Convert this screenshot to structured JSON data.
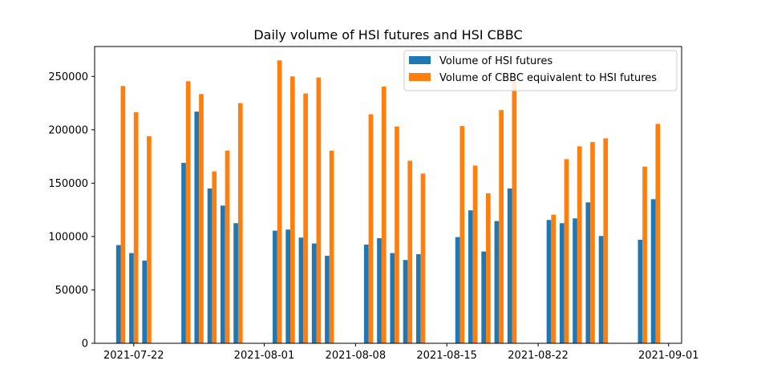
{
  "chart_data": {
    "type": "bar",
    "title": "Daily volume of HSI futures and HSI CBBC",
    "xlabel": "",
    "ylabel": "",
    "ylim": [
      0,
      278000
    ],
    "xlim": [
      "2021-07-19",
      "2021-09-02"
    ],
    "x_tick_labels": [
      "2021-07-22",
      "2021-08-01",
      "2021-08-08",
      "2021-08-15",
      "2021-08-22",
      "2021-09-01"
    ],
    "y_tick_values": [
      0,
      50000,
      100000,
      150000,
      200000,
      250000
    ],
    "y_tick_labels": [
      "0",
      "50000",
      "100000",
      "150000",
      "200000",
      "250000"
    ],
    "grid": false,
    "legend_position": "top-right",
    "x": [
      "2021-07-21",
      "2021-07-22",
      "2021-07-23",
      "2021-07-26",
      "2021-07-27",
      "2021-07-28",
      "2021-07-29",
      "2021-07-30",
      "2021-08-02",
      "2021-08-03",
      "2021-08-04",
      "2021-08-05",
      "2021-08-06",
      "2021-08-09",
      "2021-08-10",
      "2021-08-11",
      "2021-08-12",
      "2021-08-13",
      "2021-08-16",
      "2021-08-17",
      "2021-08-18",
      "2021-08-19",
      "2021-08-20",
      "2021-08-23",
      "2021-08-24",
      "2021-08-25",
      "2021-08-26",
      "2021-08-27",
      "2021-08-30",
      "2021-08-31"
    ],
    "series": [
      {
        "name": "Volume of HSI futures",
        "color": "#1f77b4",
        "values": [
          92000,
          84500,
          77500,
          169000,
          217000,
          145000,
          129000,
          112500,
          105500,
          106500,
          99000,
          93500,
          82000,
          92500,
          98500,
          84500,
          78000,
          83500,
          99500,
          124500,
          86000,
          114500,
          145000,
          115500,
          112500,
          117000,
          132000,
          100500,
          97000,
          135000
        ]
      },
      {
        "name": "Volume of CBBC equivalent to HSI futures",
        "color": "#ff7f0e",
        "values": [
          241000,
          216500,
          194000,
          245500,
          233500,
          161000,
          180500,
          225000,
          265000,
          250000,
          234000,
          249000,
          180500,
          214500,
          240500,
          203000,
          171000,
          159000,
          203500,
          166500,
          140500,
          218500,
          245000,
          120500,
          172500,
          184500,
          188500,
          192000,
          165500,
          205500
        ]
      }
    ]
  }
}
